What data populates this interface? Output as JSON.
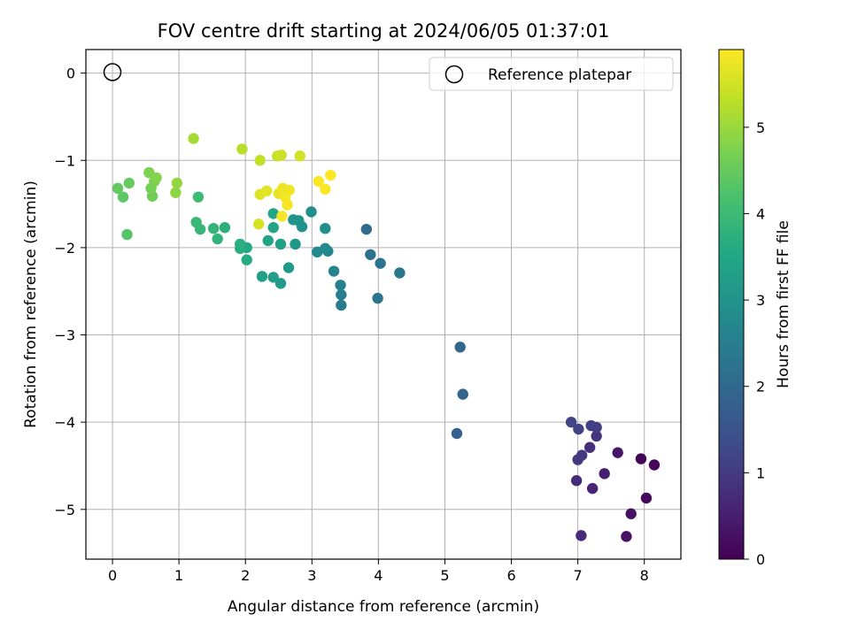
{
  "chart_data": {
    "type": "scatter",
    "title": "FOV centre drift starting at 2024/06/05 01:37:01",
    "xlabel": "Angular distance from reference (arcmin)",
    "ylabel": "Rotation from reference (arcmin)",
    "xlim": [
      -0.4,
      8.55
    ],
    "ylim": [
      -5.57,
      0.27
    ],
    "xticks": [
      0,
      1,
      2,
      3,
      4,
      5,
      6,
      7,
      8
    ],
    "yticks": [
      0,
      -1,
      -2,
      -3,
      -4,
      -5
    ],
    "xtick_labels": [
      "0",
      "1",
      "2",
      "3",
      "4",
      "5",
      "6",
      "7",
      "8"
    ],
    "ytick_labels": [
      "0",
      "−1",
      "−2",
      "−3",
      "−4",
      "−5"
    ],
    "grid": true,
    "legend": {
      "label": "Reference platepar",
      "placement": "top-right"
    },
    "reference_point": {
      "x": 0,
      "y": 0
    },
    "colorbar": {
      "label": "Hours from first FF file",
      "range": [
        0,
        5.9
      ],
      "ticks": [
        0,
        1,
        2,
        3,
        4,
        5
      ],
      "tick_labels": [
        "0",
        "1",
        "2",
        "3",
        "4",
        "5"
      ],
      "colormap": "viridis"
    },
    "points": [
      {
        "x": 7.95,
        "y": -4.42,
        "h": 0.05
      },
      {
        "x": 8.15,
        "y": -4.49,
        "h": 0.1
      },
      {
        "x": 8.03,
        "y": -4.87,
        "h": 0.15
      },
      {
        "x": 7.8,
        "y": -5.05,
        "h": 0.25
      },
      {
        "x": 7.73,
        "y": -5.31,
        "h": 0.3
      },
      {
        "x": 7.6,
        "y": -4.35,
        "h": 0.35
      },
      {
        "x": 7.4,
        "y": -4.59,
        "h": 0.5
      },
      {
        "x": 7.22,
        "y": -4.76,
        "h": 0.6
      },
      {
        "x": 7.05,
        "y": -5.3,
        "h": 0.7
      },
      {
        "x": 6.98,
        "y": -4.67,
        "h": 0.75
      },
      {
        "x": 7.18,
        "y": -4.29,
        "h": 0.8
      },
      {
        "x": 7.28,
        "y": -4.16,
        "h": 0.9
      },
      {
        "x": 7.0,
        "y": -4.43,
        "h": 0.95
      },
      {
        "x": 7.06,
        "y": -4.38,
        "h": 1.0
      },
      {
        "x": 7.28,
        "y": -4.06,
        "h": 1.05
      },
      {
        "x": 7.2,
        "y": -4.04,
        "h": 1.1
      },
      {
        "x": 7.01,
        "y": -4.08,
        "h": 1.15
      },
      {
        "x": 6.9,
        "y": -4.0,
        "h": 1.2
      },
      {
        "x": 5.18,
        "y": -4.13,
        "h": 1.85
      },
      {
        "x": 5.27,
        "y": -3.68,
        "h": 1.9
      },
      {
        "x": 5.23,
        "y": -3.14,
        "h": 1.95
      },
      {
        "x": 3.82,
        "y": -1.79,
        "h": 2.05
      },
      {
        "x": 3.88,
        "y": -2.08,
        "h": 2.2
      },
      {
        "x": 4.03,
        "y": -2.18,
        "h": 2.25
      },
      {
        "x": 3.99,
        "y": -2.58,
        "h": 2.3
      },
      {
        "x": 4.32,
        "y": -2.29,
        "h": 2.35
      },
      {
        "x": 3.44,
        "y": -2.66,
        "h": 2.45
      },
      {
        "x": 3.44,
        "y": -2.54,
        "h": 2.5
      },
      {
        "x": 3.43,
        "y": -2.43,
        "h": 2.55
      },
      {
        "x": 3.33,
        "y": -2.27,
        "h": 2.6
      },
      {
        "x": 3.24,
        "y": -2.04,
        "h": 2.7
      },
      {
        "x": 3.2,
        "y": -2.01,
        "h": 2.75
      },
      {
        "x": 3.08,
        "y": -2.05,
        "h": 2.8
      },
      {
        "x": 3.2,
        "y": -1.78,
        "h": 2.85
      },
      {
        "x": 2.99,
        "y": -1.59,
        "h": 2.9
      },
      {
        "x": 2.85,
        "y": -1.76,
        "h": 2.95
      },
      {
        "x": 2.8,
        "y": -1.69,
        "h": 3.0
      },
      {
        "x": 2.72,
        "y": -1.68,
        "h": 3.05
      },
      {
        "x": 2.75,
        "y": -1.96,
        "h": 3.1
      },
      {
        "x": 2.65,
        "y": -2.23,
        "h": 3.15
      },
      {
        "x": 2.53,
        "y": -2.41,
        "h": 3.2
      },
      {
        "x": 2.42,
        "y": -2.34,
        "h": 3.25
      },
      {
        "x": 2.25,
        "y": -2.33,
        "h": 3.3
      },
      {
        "x": 2.53,
        "y": -1.96,
        "h": 3.35
      },
      {
        "x": 2.34,
        "y": -1.92,
        "h": 3.4
      },
      {
        "x": 2.42,
        "y": -1.77,
        "h": 3.45
      },
      {
        "x": 2.42,
        "y": -1.61,
        "h": 3.5
      },
      {
        "x": 2.02,
        "y": -2.0,
        "h": 3.55
      },
      {
        "x": 2.02,
        "y": -2.14,
        "h": 3.6
      },
      {
        "x": 1.92,
        "y": -2.01,
        "h": 3.65
      },
      {
        "x": 1.92,
        "y": -1.96,
        "h": 3.7
      },
      {
        "x": 1.69,
        "y": -1.77,
        "h": 3.75
      },
      {
        "x": 1.58,
        "y": -1.9,
        "h": 3.8
      },
      {
        "x": 1.52,
        "y": -1.78,
        "h": 3.85
      },
      {
        "x": 1.32,
        "y": -1.79,
        "h": 3.9
      },
      {
        "x": 1.26,
        "y": -1.71,
        "h": 3.95
      },
      {
        "x": 1.29,
        "y": -1.42,
        "h": 4.0
      },
      {
        "x": 0.22,
        "y": -1.85,
        "h": 4.3
      },
      {
        "x": 0.16,
        "y": -1.42,
        "h": 4.4
      },
      {
        "x": 0.08,
        "y": -1.32,
        "h": 4.45
      },
      {
        "x": 0.25,
        "y": -1.26,
        "h": 4.5
      },
      {
        "x": 0.6,
        "y": -1.41,
        "h": 4.6
      },
      {
        "x": 0.58,
        "y": -1.32,
        "h": 4.65
      },
      {
        "x": 0.63,
        "y": -1.24,
        "h": 4.7
      },
      {
        "x": 0.55,
        "y": -1.14,
        "h": 4.75
      },
      {
        "x": 0.66,
        "y": -1.2,
        "h": 4.8
      },
      {
        "x": 0.95,
        "y": -1.37,
        "h": 4.9
      },
      {
        "x": 0.97,
        "y": -1.26,
        "h": 4.95
      },
      {
        "x": 1.22,
        "y": -0.75,
        "h": 5.1
      },
      {
        "x": 1.95,
        "y": -0.87,
        "h": 5.25
      },
      {
        "x": 2.22,
        "y": -1.0,
        "h": 5.35
      },
      {
        "x": 2.48,
        "y": -0.95,
        "h": 5.4
      },
      {
        "x": 2.54,
        "y": -0.94,
        "h": 5.45
      },
      {
        "x": 2.82,
        "y": -0.95,
        "h": 5.5
      },
      {
        "x": 2.2,
        "y": -1.73,
        "h": 5.55
      },
      {
        "x": 2.22,
        "y": -1.39,
        "h": 5.6
      },
      {
        "x": 2.32,
        "y": -1.35,
        "h": 5.65
      },
      {
        "x": 2.5,
        "y": -1.38,
        "h": 5.7
      },
      {
        "x": 2.56,
        "y": -1.32,
        "h": 5.75
      },
      {
        "x": 2.66,
        "y": -1.34,
        "h": 5.77
      },
      {
        "x": 2.6,
        "y": -1.42,
        "h": 5.8
      },
      {
        "x": 2.63,
        "y": -1.51,
        "h": 5.82
      },
      {
        "x": 2.55,
        "y": -1.64,
        "h": 5.84
      },
      {
        "x": 3.1,
        "y": -1.24,
        "h": 5.86
      },
      {
        "x": 3.2,
        "y": -1.33,
        "h": 5.88
      },
      {
        "x": 3.28,
        "y": -1.17,
        "h": 5.9
      }
    ]
  }
}
